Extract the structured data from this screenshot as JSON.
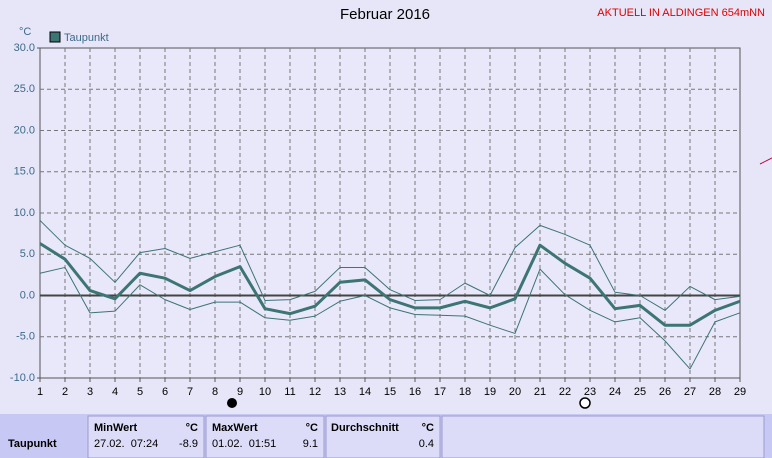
{
  "chart_data": {
    "type": "line",
    "title": "Februar 2016",
    "subtitle": "AKTUELL IN ALDINGEN 654mNN",
    "y_unit": "°C",
    "categories": [
      "1",
      "2",
      "3",
      "4",
      "5",
      "6",
      "7",
      "8",
      "9",
      "10",
      "11",
      "12",
      "13",
      "14",
      "15",
      "16",
      "17",
      "18",
      "19",
      "20",
      "21",
      "22",
      "23",
      "24",
      "25",
      "26",
      "27",
      "28",
      "29"
    ],
    "series": [
      {
        "name": "Taupunkt",
        "color": "#3d7474",
        "line_width": 3,
        "values": [
          6.3,
          4.4,
          0.6,
          -0.4,
          2.7,
          2.1,
          0.6,
          2.3,
          3.5,
          -1.6,
          -2.2,
          -1.3,
          1.6,
          1.9,
          -0.5,
          -1.5,
          -1.5,
          -0.7,
          -1.5,
          -0.4,
          6.1,
          3.9,
          2.1,
          -1.6,
          -1.2,
          -3.6,
          -3.6,
          -1.8,
          -0.7
        ]
      },
      {
        "color": "#3d7474",
        "line_width": 1,
        "values": [
          9.1,
          6.1,
          4.5,
          1.6,
          5.2,
          5.7,
          4.5,
          5.3,
          6.1,
          -0.6,
          -0.5,
          0.5,
          3.4,
          3.4,
          0.7,
          -0.6,
          -0.5,
          1.5,
          0,
          5.8,
          8.5,
          7.4,
          6.1,
          0.4,
          0,
          -1.8,
          1.1,
          -0.5,
          -0.1
        ]
      },
      {
        "color": "#3d7474",
        "line_width": 1,
        "values": [
          2.7,
          3.4,
          -2.1,
          -1.9,
          1.3,
          -0.5,
          -1.7,
          -0.8,
          -0.8,
          -2.7,
          -3.0,
          -2.5,
          -0.7,
          0,
          -1.5,
          -2.3,
          -2.4,
          -2.5,
          -3.6,
          -4.6,
          3.2,
          0.1,
          -1.8,
          -3.2,
          -2.7,
          -5.5,
          -8.9,
          -3.2,
          -2.1
        ]
      }
    ],
    "ylim": [
      -10,
      30
    ],
    "yticks": [
      {
        "value": -10,
        "label": "-10.0"
      },
      {
        "value": -5,
        "label": "-5.0"
      },
      {
        "value": 0,
        "label": "0.0"
      },
      {
        "value": 5,
        "label": "5.0"
      },
      {
        "value": 10,
        "label": "10.0"
      },
      {
        "value": 15,
        "label": "15.0"
      },
      {
        "value": 20,
        "label": "20.0"
      },
      {
        "value": 25,
        "label": "25.0"
      },
      {
        "value": 30,
        "label": "30.0"
      }
    ],
    "grid": true
  },
  "table": {
    "columns": [
      {
        "title": "MinWert",
        "unit": "°C"
      },
      {
        "title": "MaxWert",
        "unit": "°C"
      },
      {
        "title": "Durchschnitt",
        "unit": "°C"
      }
    ],
    "rows": [
      {
        "label": "Taupunkt",
        "min_time": "27.02.  07:24",
        "min": -8.9,
        "max_time": "01.02.  01:51",
        "max": 9.1,
        "avg": 0.4
      }
    ]
  }
}
